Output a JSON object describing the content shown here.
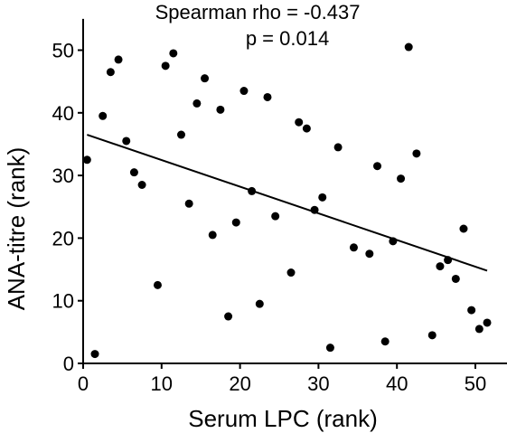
{
  "chart_data": {
    "type": "scatter",
    "xlabel": "Serum LPC (rank)",
    "ylabel": "ANA-titre (rank)",
    "annotations": [
      "Spearman rho = -0.437",
      "p = 0.014"
    ],
    "xlim": [
      0,
      55
    ],
    "ylim": [
      0,
      55
    ],
    "xticks": [
      0,
      10,
      20,
      30,
      40,
      50
    ],
    "yticks": [
      0,
      10,
      20,
      30,
      40,
      50
    ],
    "grid": false,
    "x": [
      0.5,
      1.5,
      2.5,
      3.5,
      4.5,
      5.5,
      6.5,
      7.5,
      9.5,
      10.5,
      11.5,
      12.5,
      13.5,
      14.5,
      15.5,
      16.5,
      17.5,
      18.5,
      19.5,
      20.5,
      21.5,
      22.5,
      23.5,
      24.5,
      26.5,
      27.5,
      28.5,
      29.5,
      30.5,
      31.5,
      32.5,
      34.5,
      36.5,
      37.5,
      38.5,
      39.5,
      40.5,
      41.5,
      42.5,
      44.5,
      45.5,
      46.5,
      47.5,
      48.5,
      49.5,
      50.5,
      51.5
    ],
    "y": [
      32.5,
      1.5,
      39.5,
      46.5,
      48.5,
      35.5,
      30.5,
      28.5,
      12.5,
      47.5,
      49.5,
      36.5,
      25.5,
      41.5,
      45.5,
      20.5,
      40.5,
      7.5,
      22.5,
      43.5,
      27.5,
      9.5,
      42.5,
      23.5,
      14.5,
      38.5,
      37.5,
      24.5,
      26.5,
      2.5,
      34.5,
      18.5,
      17.5,
      31.5,
      3.5,
      19.5,
      29.5,
      50.5,
      33.5,
      4.5,
      15.5,
      16.5,
      13.5,
      21.5,
      8.5,
      5.5,
      6.5
    ],
    "fit_line": {
      "x": [
        0.5,
        51.5
      ],
      "y": [
        36.5,
        14.8
      ]
    }
  }
}
